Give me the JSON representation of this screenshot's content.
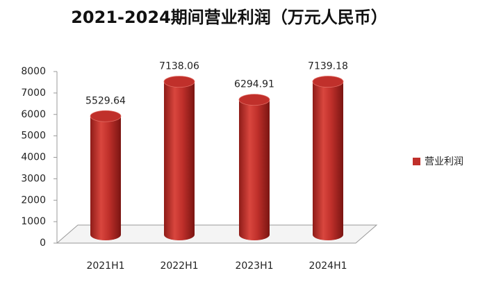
{
  "chart_data": {
    "type": "bar",
    "title": "2021-2024期间营业利润（万元人民币）",
    "categories": [
      "2021H1",
      "2022H1",
      "2023H1",
      "2024H1"
    ],
    "series": [
      {
        "name": "营业利润",
        "color": "#c0302b",
        "values": [
          5529.64,
          7138.06,
          6294.91,
          7139.18
        ]
      }
    ],
    "ylim": [
      0,
      8000
    ],
    "yticks": [
      0,
      1000,
      2000,
      3000,
      4000,
      5000,
      6000,
      7000,
      8000
    ],
    "grid": false,
    "legend": "right"
  }
}
